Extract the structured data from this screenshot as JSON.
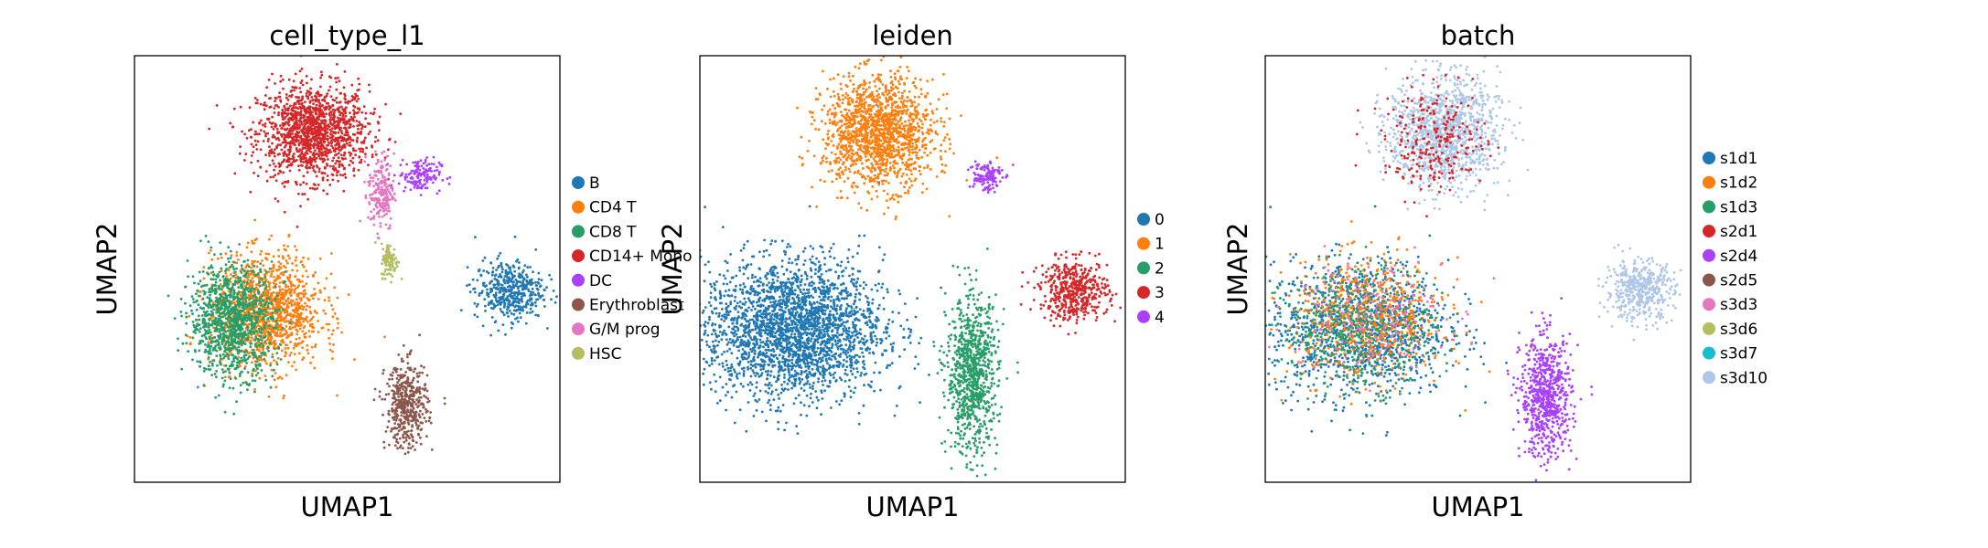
{
  "chart_data": [
    {
      "type": "scatter",
      "title": "cell_type_l1",
      "xlabel": "UMAP1",
      "ylabel": "UMAP2",
      "grid": false,
      "ticks": false,
      "legend_position": "right",
      "legend": [
        {
          "label": "B",
          "color": "#1f77b4"
        },
        {
          "label": "CD4 T",
          "color": "#ff7f0e"
        },
        {
          "label": "CD8 T",
          "color": "#279e68"
        },
        {
          "label": "CD14+ Mono",
          "color": "#d62728"
        },
        {
          "label": "DC",
          "color": "#aa40fc"
        },
        {
          "label": "Erythroblast",
          "color": "#8c564b"
        },
        {
          "label": "G/M prog",
          "color": "#e377c2"
        },
        {
          "label": "HSC",
          "color": "#b5bd61"
        }
      ],
      "clusters": [
        {
          "label": "CD14+ Mono",
          "cx": 0.42,
          "cy": 0.82,
          "rx": 0.13,
          "ry": 0.11,
          "n": 1400
        },
        {
          "label": "DC",
          "cx": 0.67,
          "cy": 0.72,
          "rx": 0.05,
          "ry": 0.04,
          "n": 150
        },
        {
          "label": "G/M prog",
          "cx": 0.58,
          "cy": 0.68,
          "rx": 0.03,
          "ry": 0.09,
          "n": 200
        },
        {
          "label": "HSC",
          "cx": 0.6,
          "cy": 0.52,
          "rx": 0.02,
          "ry": 0.04,
          "n": 100
        },
        {
          "label": "B",
          "cx": 0.88,
          "cy": 0.45,
          "rx": 0.08,
          "ry": 0.07,
          "n": 450
        },
        {
          "label": "CD4 T",
          "cx": 0.31,
          "cy": 0.4,
          "rx": 0.13,
          "ry": 0.13,
          "n": 1300
        },
        {
          "label": "CD8 T",
          "cx": 0.23,
          "cy": 0.38,
          "rx": 0.1,
          "ry": 0.13,
          "n": 1100
        },
        {
          "label": "Erythroblast",
          "cx": 0.64,
          "cy": 0.18,
          "rx": 0.05,
          "ry": 0.1,
          "n": 450
        }
      ]
    },
    {
      "type": "scatter",
      "title": "leiden",
      "xlabel": "UMAP1",
      "ylabel": "UMAP2",
      "grid": false,
      "ticks": false,
      "legend_position": "right",
      "legend": [
        {
          "label": "0",
          "color": "#1f77b4"
        },
        {
          "label": "1",
          "color": "#ff7f0e"
        },
        {
          "label": "2",
          "color": "#279e68"
        },
        {
          "label": "3",
          "color": "#d62728"
        },
        {
          "label": "4",
          "color": "#aa40fc"
        }
      ],
      "clusters": [
        {
          "label": "0",
          "cx": 0.22,
          "cy": 0.36,
          "rx": 0.21,
          "ry": 0.16,
          "n": 2600
        },
        {
          "label": "1",
          "cx": 0.42,
          "cy": 0.82,
          "rx": 0.13,
          "ry": 0.13,
          "n": 1500
        },
        {
          "label": "2",
          "cx": 0.64,
          "cy": 0.25,
          "rx": 0.06,
          "ry": 0.18,
          "n": 900
        },
        {
          "label": "3",
          "cx": 0.88,
          "cy": 0.45,
          "rx": 0.08,
          "ry": 0.07,
          "n": 500
        },
        {
          "label": "4",
          "cx": 0.67,
          "cy": 0.72,
          "rx": 0.04,
          "ry": 0.04,
          "n": 120
        }
      ]
    },
    {
      "type": "scatter",
      "title": "batch",
      "xlabel": "UMAP1",
      "ylabel": "UMAP2",
      "grid": false,
      "ticks": false,
      "legend_position": "right",
      "legend": [
        {
          "label": "s1d1",
          "color": "#1f77b4"
        },
        {
          "label": "s1d2",
          "color": "#ff7f0e"
        },
        {
          "label": "s1d3",
          "color": "#279e68"
        },
        {
          "label": "s2d1",
          "color": "#d62728"
        },
        {
          "label": "s2d4",
          "color": "#aa40fc"
        },
        {
          "label": "s2d5",
          "color": "#8c564b"
        },
        {
          "label": "s3d3",
          "color": "#e377c2"
        },
        {
          "label": "s3d6",
          "color": "#b5bd61"
        },
        {
          "label": "s3d7",
          "color": "#17becf"
        },
        {
          "label": "s3d10",
          "color": "#aec7e8"
        }
      ],
      "clusters": [
        {
          "label": "s3d10",
          "cx": 0.42,
          "cy": 0.82,
          "rx": 0.13,
          "ry": 0.13,
          "n": 1200
        },
        {
          "label": "s1d1",
          "cx": 0.22,
          "cy": 0.36,
          "rx": 0.21,
          "ry": 0.16,
          "n": 1200
        },
        {
          "label": "s1d2",
          "cx": 0.24,
          "cy": 0.38,
          "rx": 0.18,
          "ry": 0.14,
          "n": 700
        },
        {
          "label": "s1d3",
          "cx": 0.22,
          "cy": 0.36,
          "rx": 0.18,
          "ry": 0.14,
          "n": 500
        },
        {
          "label": "s3d10",
          "cx": 0.88,
          "cy": 0.45,
          "rx": 0.08,
          "ry": 0.07,
          "n": 450
        },
        {
          "label": "s2d4",
          "cx": 0.66,
          "cy": 0.2,
          "rx": 0.06,
          "ry": 0.14,
          "n": 700
        },
        {
          "label": "s2d1",
          "cx": 0.4,
          "cy": 0.8,
          "rx": 0.12,
          "ry": 0.12,
          "n": 250
        },
        {
          "label": "s3d3",
          "cx": 0.24,
          "cy": 0.4,
          "rx": 0.18,
          "ry": 0.13,
          "n": 200
        }
      ]
    }
  ]
}
